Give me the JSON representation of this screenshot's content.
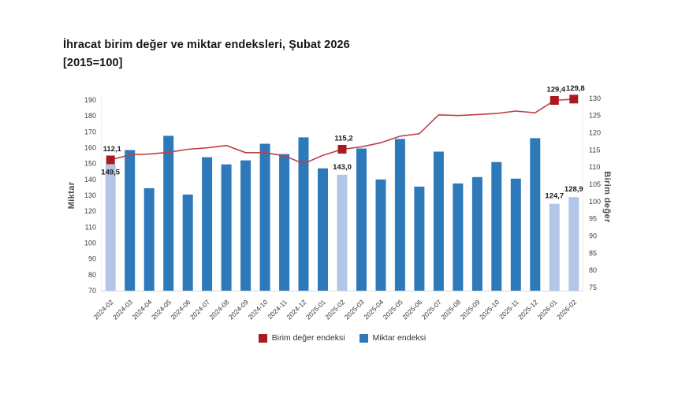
{
  "header": {
    "title": "İhracat birim değer ve miktar endeksleri, Şubat 2026",
    "subtitle": "[2015=100]"
  },
  "chart_data": {
    "type": "bar+line",
    "title": "İhracat birim değer ve miktar endeksleri, Şubat 2026 [2015=100]",
    "grid": false,
    "legend_position": "bottom-center",
    "categories": [
      "2024-02",
      "2024-03",
      "2024-04",
      "2024-05",
      "2024-06",
      "2024-07",
      "2024-08",
      "2024-09",
      "2024-10",
      "2024-11",
      "2024-12",
      "2025-01",
      "2025-02",
      "2025-03",
      "2025-04",
      "2025-05",
      "2025-06",
      "2025-07",
      "2025-08",
      "2025-09",
      "2025-10",
      "2025-11",
      "2025-12",
      "2026-01",
      "2026-02"
    ],
    "series": [
      {
        "name": "Miktar endeksi",
        "type": "bar",
        "axis": "left",
        "color": "#2e79b9",
        "highlight_color": "#b3c6e8",
        "highlight_indices": [
          0,
          12,
          23,
          24
        ],
        "values": [
          149.5,
          158.5,
          134.5,
          167.5,
          130.5,
          154.0,
          149.5,
          152.0,
          162.5,
          156.0,
          166.5,
          147.0,
          143.0,
          159.5,
          140.0,
          165.5,
          135.5,
          157.5,
          137.5,
          141.5,
          151.0,
          140.5,
          166.0,
          124.7,
          128.9
        ],
        "point_labels": {
          "0": "149,5",
          "12": "143,0",
          "23": "124,7",
          "24": "128,9"
        }
      },
      {
        "name": "Birim değer endeksi",
        "type": "line",
        "axis": "right",
        "color": "#a81a1f",
        "line_color": "#bf3f45",
        "marker_indices": [
          0,
          12,
          23,
          24
        ],
        "values": [
          112.1,
          113.6,
          113.8,
          114.3,
          115.2,
          115.6,
          116.3,
          114.2,
          114.2,
          113.3,
          111.0,
          113.4,
          115.2,
          115.9,
          117.1,
          119.0,
          119.7,
          125.2,
          125.0,
          125.3,
          125.6,
          126.3,
          125.8,
          129.4,
          129.8
        ],
        "point_labels": {
          "0": "112,1",
          "12": "115,2",
          "23": "129,4",
          "24": "129,8"
        }
      }
    ],
    "left_axis": {
      "title": "Miktar",
      "min": 70,
      "max": 190,
      "tick_step": 10,
      "ticks": [
        70,
        80,
        90,
        100,
        110,
        120,
        130,
        140,
        150,
        160,
        170,
        180,
        190
      ]
    },
    "right_axis": {
      "title": "Birim değer",
      "min": 75,
      "max": 130,
      "tick_step": 5,
      "ticks": [
        75,
        80,
        85,
        90,
        95,
        100,
        105,
        110,
        115,
        120,
        125,
        130
      ]
    },
    "legend": [
      {
        "label": "Birim değer endeksi",
        "color": "#a81a1f"
      },
      {
        "label": "Miktar endeksi",
        "color": "#2e79b9"
      }
    ]
  }
}
